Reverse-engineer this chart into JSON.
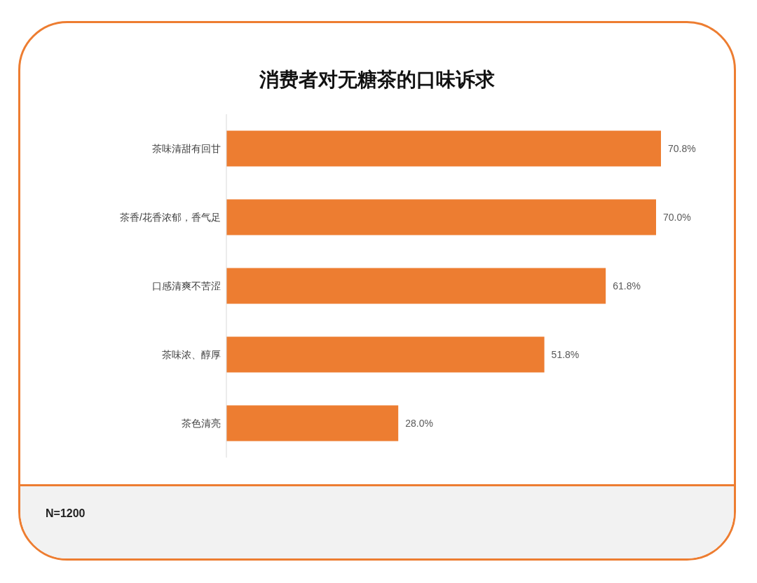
{
  "chart_data": {
    "type": "bar",
    "orientation": "horizontal",
    "title": "消费者对无糖茶的口味诉求",
    "categories": [
      "茶味清甜有回甘",
      "茶香/花香浓郁，香气足",
      "口感清爽不苦涩",
      "茶味浓、醇厚",
      "茶色清亮"
    ],
    "values": [
      70.8,
      70.0,
      61.8,
      51.8,
      28.0
    ],
    "value_labels": [
      "70.8%",
      "70.0%",
      "61.8%",
      "51.8%",
      "28.0%"
    ],
    "color": "#ed7d31",
    "annotations": [
      "N=1200"
    ]
  }
}
